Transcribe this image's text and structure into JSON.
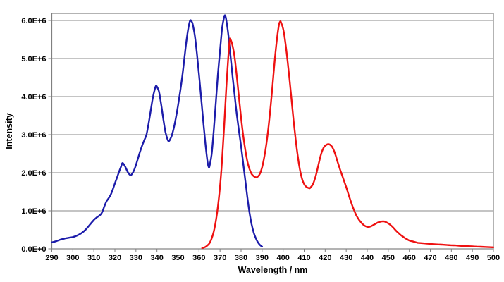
{
  "chart_data": {
    "type": "line",
    "title": "",
    "xlabel": "Wavelength / nm",
    "ylabel": "Intensity",
    "xlim": [
      290,
      500
    ],
    "ylim": [
      0,
      6185000
    ],
    "grid": "horizontal-only",
    "legend": "none",
    "x_ticks": [
      290,
      300,
      310,
      320,
      330,
      340,
      350,
      360,
      370,
      380,
      390,
      400,
      410,
      420,
      430,
      440,
      450,
      460,
      470,
      480,
      490,
      500
    ],
    "y_ticks": [
      {
        "value": 0,
        "label": "0.0E+0"
      },
      {
        "value": 1000000,
        "label": "1.0E+6"
      },
      {
        "value": 2000000,
        "label": "2.0E+6"
      },
      {
        "value": 3000000,
        "label": "3.0E+6"
      },
      {
        "value": 4000000,
        "label": "4.0E+6"
      },
      {
        "value": 5000000,
        "label": "5.0E+6"
      },
      {
        "value": 6000000,
        "label": "6.0E+6"
      }
    ],
    "colors": {
      "gridline": "#888888",
      "axis_border": "#808080",
      "text": "#000000"
    },
    "series": [
      {
        "name": "blue-spectrum",
        "color": "#1C1CAA",
        "peaks_nm": [
          323.5,
          339.5,
          356,
          372.5
        ],
        "points": [
          [
            290,
            170000
          ],
          [
            292,
            200000
          ],
          [
            294,
            240000
          ],
          [
            296,
            270000
          ],
          [
            298,
            290000
          ],
          [
            300,
            310000
          ],
          [
            302,
            350000
          ],
          [
            304,
            410000
          ],
          [
            306,
            500000
          ],
          [
            308,
            630000
          ],
          [
            310,
            760000
          ],
          [
            311,
            810000
          ],
          [
            312,
            850000
          ],
          [
            313,
            890000
          ],
          [
            314,
            970000
          ],
          [
            315,
            1120000
          ],
          [
            316,
            1250000
          ],
          [
            317,
            1330000
          ],
          [
            318,
            1420000
          ],
          [
            319,
            1560000
          ],
          [
            320,
            1720000
          ],
          [
            321,
            1870000
          ],
          [
            322,
            2030000
          ],
          [
            323,
            2170000
          ],
          [
            323.5,
            2250000
          ],
          [
            324,
            2240000
          ],
          [
            325,
            2150000
          ],
          [
            326,
            2030000
          ],
          [
            327,
            1950000
          ],
          [
            327.5,
            1930000
          ],
          [
            328,
            1960000
          ],
          [
            329,
            2050000
          ],
          [
            330,
            2200000
          ],
          [
            331,
            2380000
          ],
          [
            332,
            2560000
          ],
          [
            333,
            2720000
          ],
          [
            334,
            2860000
          ],
          [
            335,
            3000000
          ],
          [
            336,
            3280000
          ],
          [
            337,
            3620000
          ],
          [
            338,
            3960000
          ],
          [
            339,
            4200000
          ],
          [
            339.5,
            4280000
          ],
          [
            340,
            4260000
          ],
          [
            341,
            4120000
          ],
          [
            342,
            3800000
          ],
          [
            343,
            3420000
          ],
          [
            344,
            3080000
          ],
          [
            345,
            2880000
          ],
          [
            345.5,
            2830000
          ],
          [
            346,
            2850000
          ],
          [
            347,
            2970000
          ],
          [
            348,
            3170000
          ],
          [
            349,
            3440000
          ],
          [
            350,
            3760000
          ],
          [
            351,
            4120000
          ],
          [
            352,
            4520000
          ],
          [
            353,
            4980000
          ],
          [
            354,
            5450000
          ],
          [
            355,
            5820000
          ],
          [
            355.8,
            6000000
          ],
          [
            356.5,
            5970000
          ],
          [
            357,
            5900000
          ],
          [
            358,
            5600000
          ],
          [
            359,
            5120000
          ],
          [
            360,
            4580000
          ],
          [
            361,
            3980000
          ],
          [
            362,
            3360000
          ],
          [
            363,
            2780000
          ],
          [
            364,
            2300000
          ],
          [
            364.6,
            2150000
          ],
          [
            365,
            2180000
          ],
          [
            366,
            2480000
          ],
          [
            367,
            3100000
          ],
          [
            368,
            3850000
          ],
          [
            369,
            4600000
          ],
          [
            370,
            5220000
          ],
          [
            371,
            5800000
          ],
          [
            372,
            6100000
          ],
          [
            372.5,
            6120000
          ],
          [
            373,
            6000000
          ],
          [
            374,
            5600000
          ],
          [
            375,
            5050000
          ],
          [
            376,
            4500000
          ],
          [
            377,
            4000000
          ],
          [
            378,
            3520000
          ],
          [
            379,
            3100000
          ],
          [
            380,
            2700000
          ],
          [
            381,
            2250000
          ],
          [
            382,
            1800000
          ],
          [
            383,
            1360000
          ],
          [
            384,
            960000
          ],
          [
            385,
            650000
          ],
          [
            386,
            430000
          ],
          [
            387,
            280000
          ],
          [
            388,
            170000
          ],
          [
            389,
            100000
          ],
          [
            390,
            60000
          ]
        ]
      },
      {
        "name": "red-spectrum",
        "color": "#EE1111",
        "peaks_nm": [
          375,
          398.6,
          421.6,
          447.5
        ],
        "points": [
          [
            361.5,
            20000
          ],
          [
            363,
            50000
          ],
          [
            364,
            90000
          ],
          [
            365,
            150000
          ],
          [
            366,
            270000
          ],
          [
            367,
            450000
          ],
          [
            368,
            730000
          ],
          [
            369,
            1120000
          ],
          [
            370,
            1650000
          ],
          [
            371,
            2350000
          ],
          [
            372,
            3250000
          ],
          [
            373,
            4250000
          ],
          [
            374,
            5100000
          ],
          [
            374.6,
            5480000
          ],
          [
            375,
            5500000
          ],
          [
            376,
            5320000
          ],
          [
            377,
            5000000
          ],
          [
            378,
            4520000
          ],
          [
            379,
            3980000
          ],
          [
            380,
            3450000
          ],
          [
            381,
            2980000
          ],
          [
            382,
            2600000
          ],
          [
            383,
            2300000
          ],
          [
            384,
            2100000
          ],
          [
            385,
            1970000
          ],
          [
            386,
            1910000
          ],
          [
            387,
            1880000
          ],
          [
            388,
            1900000
          ],
          [
            389,
            1980000
          ],
          [
            390,
            2140000
          ],
          [
            391,
            2400000
          ],
          [
            392,
            2740000
          ],
          [
            393,
            3180000
          ],
          [
            394,
            3720000
          ],
          [
            395,
            4320000
          ],
          [
            396,
            4940000
          ],
          [
            397,
            5480000
          ],
          [
            398,
            5880000
          ],
          [
            398.6,
            5970000
          ],
          [
            399,
            5950000
          ],
          [
            400,
            5780000
          ],
          [
            401,
            5450000
          ],
          [
            402,
            5000000
          ],
          [
            403,
            4480000
          ],
          [
            404,
            3920000
          ],
          [
            405,
            3350000
          ],
          [
            406,
            2850000
          ],
          [
            407,
            2420000
          ],
          [
            408,
            2080000
          ],
          [
            409,
            1840000
          ],
          [
            410,
            1700000
          ],
          [
            411,
            1630000
          ],
          [
            412,
            1600000
          ],
          [
            412.6,
            1590000
          ],
          [
            413,
            1610000
          ],
          [
            414,
            1680000
          ],
          [
            415,
            1820000
          ],
          [
            416,
            2020000
          ],
          [
            417,
            2260000
          ],
          [
            418,
            2480000
          ],
          [
            419,
            2630000
          ],
          [
            420,
            2710000
          ],
          [
            421.6,
            2750000
          ],
          [
            423,
            2700000
          ],
          [
            424,
            2600000
          ],
          [
            425,
            2450000
          ],
          [
            426,
            2270000
          ],
          [
            427,
            2100000
          ],
          [
            428,
            1940000
          ],
          [
            429,
            1780000
          ],
          [
            430,
            1620000
          ],
          [
            431,
            1450000
          ],
          [
            432,
            1280000
          ],
          [
            433,
            1120000
          ],
          [
            434,
            980000
          ],
          [
            435,
            860000
          ],
          [
            436,
            770000
          ],
          [
            437,
            700000
          ],
          [
            438,
            640000
          ],
          [
            439,
            600000
          ],
          [
            440,
            580000
          ],
          [
            441,
            580000
          ],
          [
            442,
            600000
          ],
          [
            443,
            630000
          ],
          [
            444,
            660000
          ],
          [
            445,
            690000
          ],
          [
            446,
            710000
          ],
          [
            447,
            720000
          ],
          [
            448,
            720000
          ],
          [
            449,
            700000
          ],
          [
            450,
            670000
          ],
          [
            451,
            630000
          ],
          [
            452,
            580000
          ],
          [
            453,
            520000
          ],
          [
            454,
            460000
          ],
          [
            455,
            410000
          ],
          [
            456,
            360000
          ],
          [
            457,
            320000
          ],
          [
            458,
            280000
          ],
          [
            459,
            250000
          ],
          [
            460,
            220000
          ],
          [
            462,
            190000
          ],
          [
            464,
            160000
          ],
          [
            466,
            150000
          ],
          [
            468,
            140000
          ],
          [
            470,
            130000
          ],
          [
            472,
            120000
          ],
          [
            474,
            115000
          ],
          [
            476,
            110000
          ],
          [
            478,
            100000
          ],
          [
            480,
            95000
          ],
          [
            482,
            90000
          ],
          [
            484,
            80000
          ],
          [
            486,
            75000
          ],
          [
            488,
            70000
          ],
          [
            490,
            65000
          ],
          [
            492,
            60000
          ],
          [
            494,
            55000
          ],
          [
            496,
            50000
          ],
          [
            498,
            45000
          ],
          [
            500,
            40000
          ]
        ]
      }
    ]
  }
}
